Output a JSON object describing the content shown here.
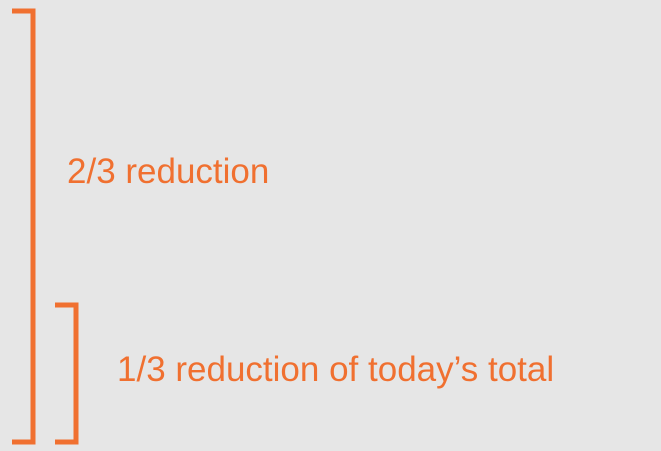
{
  "labels": [
    "2/3 reduction",
    "1/3 reduction of today’s total"
  ]
}
